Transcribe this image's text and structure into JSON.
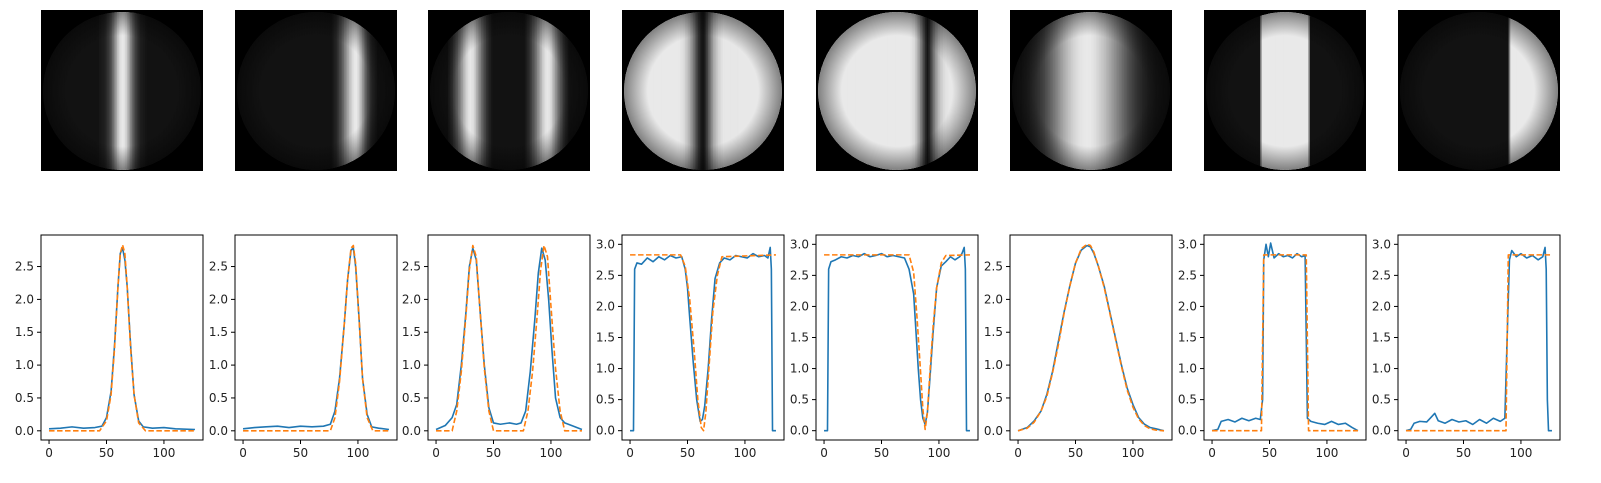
{
  "colors": {
    "measured": "#1f77b4",
    "model": "#ff7f0e",
    "image_background": "#000000"
  },
  "chart_data": [
    {
      "type": "line",
      "panel": 1,
      "image": "grayscale disk with a single bright vertical band near centre",
      "xlim": [
        -7,
        134
      ],
      "ylim": [
        -0.14,
        2.98
      ],
      "xticks": [
        0,
        50,
        100
      ],
      "yticks": [
        0.0,
        0.5,
        1.0,
        1.5,
        2.0,
        2.5
      ],
      "ytick_labels": [
        "0.0",
        "0.5",
        "1.0",
        "1.5",
        "2.0",
        "2.5"
      ],
      "series": [
        {
          "style": "solid",
          "x": [
            0,
            10,
            20,
            30,
            40,
            46,
            50,
            54,
            57,
            60,
            62,
            64,
            66,
            68,
            71,
            74,
            78,
            82,
            90,
            100,
            110,
            127
          ],
          "y": [
            0.03,
            0.04,
            0.06,
            0.04,
            0.05,
            0.07,
            0.2,
            0.6,
            1.3,
            2.2,
            2.7,
            2.78,
            2.6,
            2.2,
            1.3,
            0.55,
            0.15,
            0.06,
            0.04,
            0.05,
            0.03,
            0.02
          ]
        },
        {
          "style": "dashed",
          "x": [
            0,
            44,
            50,
            54,
            57,
            60,
            62,
            64,
            66,
            68,
            71,
            74,
            78,
            84,
            127
          ],
          "y": [
            0,
            0.0,
            0.15,
            0.55,
            1.25,
            2.2,
            2.7,
            2.83,
            2.7,
            2.2,
            1.25,
            0.55,
            0.12,
            0.0,
            0
          ]
        }
      ]
    },
    {
      "type": "line",
      "panel": 2,
      "image": "grayscale disk with a single bright vertical band right of centre",
      "xlim": [
        -7,
        134
      ],
      "ylim": [
        -0.14,
        2.98
      ],
      "xticks": [
        0,
        50,
        100
      ],
      "yticks": [
        0.0,
        0.5,
        1.0,
        1.5,
        2.0,
        2.5
      ],
      "ytick_labels": [
        "0.0",
        "0.5",
        "1.0",
        "1.5",
        "2.0",
        "2.5"
      ],
      "series": [
        {
          "style": "solid",
          "x": [
            0,
            10,
            20,
            30,
            40,
            50,
            60,
            70,
            76,
            80,
            84,
            88,
            91,
            94,
            96,
            98,
            101,
            104,
            108,
            112,
            118,
            127
          ],
          "y": [
            0.03,
            0.05,
            0.06,
            0.07,
            0.05,
            0.07,
            0.06,
            0.07,
            0.1,
            0.3,
            0.8,
            1.6,
            2.3,
            2.75,
            2.78,
            2.5,
            1.7,
            0.8,
            0.25,
            0.06,
            0.04,
            0.02
          ]
        },
        {
          "style": "dashed",
          "x": [
            0,
            76,
            80,
            84,
            88,
            91,
            94,
            96,
            98,
            101,
            104,
            108,
            113,
            127
          ],
          "y": [
            0,
            0.0,
            0.2,
            0.75,
            1.6,
            2.3,
            2.78,
            2.82,
            2.55,
            1.7,
            0.8,
            0.2,
            0.0,
            0
          ]
        }
      ]
    },
    {
      "type": "line",
      "panel": 3,
      "image": "grayscale disk with two bright vertical bands",
      "xlim": [
        -7,
        134
      ],
      "ylim": [
        -0.14,
        2.98
      ],
      "xticks": [
        0,
        50,
        100
      ],
      "yticks": [
        0.0,
        0.5,
        1.0,
        1.5,
        2.0,
        2.5
      ],
      "ytick_labels": [
        "0.0",
        "0.5",
        "1.0",
        "1.5",
        "2.0",
        "2.5"
      ],
      "series": [
        {
          "style": "solid",
          "x": [
            0,
            8,
            14,
            18,
            22,
            26,
            29,
            32,
            35,
            38,
            42,
            46,
            50,
            56,
            64,
            70,
            74,
            78,
            82,
            86,
            89,
            92,
            95,
            98,
            101,
            104,
            108,
            112,
            118,
            127
          ],
          "y": [
            0.02,
            0.08,
            0.2,
            0.4,
            1.0,
            1.8,
            2.5,
            2.78,
            2.6,
            1.9,
            1.0,
            0.35,
            0.12,
            0.1,
            0.12,
            0.1,
            0.12,
            0.3,
            0.9,
            1.7,
            2.4,
            2.78,
            2.6,
            2.0,
            1.2,
            0.5,
            0.2,
            0.12,
            0.08,
            0.02
          ]
        },
        {
          "style": "dashed",
          "x": [
            0,
            14,
            18,
            22,
            26,
            29,
            32,
            35,
            38,
            42,
            46,
            50,
            76,
            80,
            84,
            88,
            91,
            94,
            97,
            100,
            104,
            108,
            112,
            127
          ],
          "y": [
            0,
            0.0,
            0.3,
            0.9,
            1.75,
            2.45,
            2.82,
            2.65,
            1.9,
            0.95,
            0.3,
            0.0,
            0.0,
            0.3,
            0.9,
            1.75,
            2.45,
            2.82,
            2.65,
            1.9,
            0.95,
            0.3,
            0.0,
            0
          ]
        }
      ]
    },
    {
      "type": "line",
      "panel": 4,
      "image": "bright grayscale disk with a dark vertical band at centre",
      "xlim": [
        -7,
        134
      ],
      "ylim": [
        -0.15,
        3.15
      ],
      "xticks": [
        0,
        50,
        100
      ],
      "yticks": [
        0.0,
        0.5,
        1.0,
        1.5,
        2.0,
        2.5,
        3.0
      ],
      "ytick_labels": [
        "0.0",
        "0.5",
        "1.0",
        "1.5",
        "2.0",
        "2.5",
        "3.0"
      ],
      "series": [
        {
          "style": "solid",
          "x": [
            0,
            3,
            4,
            6,
            10,
            15,
            20,
            25,
            30,
            35,
            40,
            45,
            48,
            50,
            52,
            55,
            58,
            61,
            63,
            65,
            68,
            71,
            74,
            78,
            82,
            87,
            92,
            97,
            102,
            107,
            112,
            117,
            120,
            122,
            123,
            124,
            127
          ],
          "y": [
            0.0,
            0.0,
            2.6,
            2.7,
            2.68,
            2.78,
            2.72,
            2.8,
            2.75,
            2.82,
            2.78,
            2.8,
            2.6,
            2.3,
            1.8,
            1.1,
            0.5,
            0.15,
            0.18,
            0.4,
            1.0,
            1.8,
            2.45,
            2.7,
            2.78,
            2.75,
            2.82,
            2.8,
            2.78,
            2.85,
            2.8,
            2.82,
            2.78,
            2.95,
            2.6,
            0.0,
            0.0
          ]
        },
        {
          "style": "dashed",
          "x": [
            0,
            44,
            48,
            52,
            56,
            59,
            62,
            64,
            66,
            69,
            72,
            76,
            80,
            127
          ],
          "y": [
            2.83,
            2.83,
            2.65,
            2.1,
            1.25,
            0.5,
            0.05,
            0.0,
            0.3,
            1.1,
            1.9,
            2.5,
            2.8,
            2.83
          ]
        }
      ]
    },
    {
      "type": "line",
      "panel": 5,
      "image": "bright grayscale disk with a dark vertical band right of centre",
      "xlim": [
        -7,
        134
      ],
      "ylim": [
        -0.15,
        3.15
      ],
      "xticks": [
        0,
        50,
        100
      ],
      "yticks": [
        0.0,
        0.5,
        1.0,
        1.5,
        2.0,
        2.5,
        3.0
      ],
      "ytick_labels": [
        "0.0",
        "0.5",
        "1.0",
        "1.5",
        "2.0",
        "2.5",
        "3.0"
      ],
      "series": [
        {
          "style": "solid",
          "x": [
            0,
            3,
            4,
            6,
            10,
            15,
            20,
            25,
            30,
            35,
            40,
            45,
            50,
            55,
            60,
            65,
            70,
            74,
            78,
            80,
            82,
            84,
            86,
            88,
            90,
            92,
            95,
            98,
            102,
            106,
            110,
            114,
            118,
            120,
            122,
            123,
            124,
            127
          ],
          "y": [
            0.0,
            0.0,
            2.6,
            2.72,
            2.75,
            2.8,
            2.78,
            2.82,
            2.8,
            2.85,
            2.8,
            2.82,
            2.85,
            2.8,
            2.82,
            2.8,
            2.78,
            2.6,
            2.2,
            1.6,
            1.0,
            0.5,
            0.2,
            0.1,
            0.3,
            0.8,
            1.6,
            2.3,
            2.65,
            2.72,
            2.8,
            2.75,
            2.8,
            2.85,
            2.95,
            2.6,
            0.0,
            0.0
          ]
        },
        {
          "style": "dashed",
          "x": [
            0,
            74,
            78,
            81,
            84,
            86,
            88,
            90,
            92,
            95,
            98,
            102,
            106,
            127
          ],
          "y": [
            2.83,
            2.83,
            2.55,
            1.8,
            0.95,
            0.35,
            0.02,
            0.3,
            0.9,
            1.7,
            2.3,
            2.7,
            2.82,
            2.83
          ]
        }
      ]
    },
    {
      "type": "line",
      "panel": 6,
      "image": "grayscale disk with a wide soft bright band at centre",
      "xlim": [
        -7,
        134
      ],
      "ylim": [
        -0.14,
        2.98
      ],
      "xticks": [
        0,
        50,
        100
      ],
      "yticks": [
        0.0,
        0.5,
        1.0,
        1.5,
        2.0,
        2.5
      ],
      "ytick_labels": [
        "0.0",
        "0.5",
        "1.0",
        "1.5",
        "2.0",
        "2.5"
      ],
      "series": [
        {
          "style": "solid",
          "x": [
            0,
            8,
            14,
            20,
            25,
            30,
            35,
            40,
            45,
            50,
            55,
            60,
            63,
            66,
            70,
            75,
            80,
            85,
            90,
            95,
            100,
            105,
            110,
            115,
            120,
            127
          ],
          "y": [
            0.0,
            0.05,
            0.15,
            0.3,
            0.55,
            0.9,
            1.35,
            1.8,
            2.2,
            2.55,
            2.75,
            2.82,
            2.8,
            2.7,
            2.5,
            2.2,
            1.8,
            1.4,
            1.0,
            0.65,
            0.4,
            0.2,
            0.1,
            0.05,
            0.03,
            0.0
          ]
        },
        {
          "style": "dashed",
          "x": [
            0,
            8,
            14,
            20,
            25,
            30,
            35,
            40,
            45,
            50,
            55,
            60,
            63,
            66,
            70,
            75,
            80,
            85,
            90,
            95,
            100,
            105,
            110,
            115,
            120,
            127
          ],
          "y": [
            0.0,
            0.04,
            0.13,
            0.3,
            0.52,
            0.88,
            1.3,
            1.78,
            2.2,
            2.55,
            2.77,
            2.84,
            2.82,
            2.72,
            2.5,
            2.18,
            1.78,
            1.38,
            0.98,
            0.62,
            0.36,
            0.18,
            0.08,
            0.03,
            0.01,
            0.0
          ]
        }
      ]
    },
    {
      "type": "line",
      "panel": 7,
      "image": "grayscale disk with a wide bright band with sharp edges",
      "xlim": [
        -7,
        134
      ],
      "ylim": [
        -0.15,
        3.15
      ],
      "xticks": [
        0,
        50,
        100
      ],
      "yticks": [
        0.0,
        0.5,
        1.0,
        1.5,
        2.0,
        2.5,
        3.0
      ],
      "ytick_labels": [
        "0.0",
        "0.5",
        "1.0",
        "1.5",
        "2.0",
        "2.5",
        "3.0"
      ],
      "series": [
        {
          "style": "solid",
          "x": [
            0,
            5,
            8,
            14,
            20,
            26,
            32,
            38,
            42,
            44,
            45,
            47,
            49,
            51,
            54,
            58,
            62,
            66,
            70,
            74,
            78,
            81,
            82,
            83,
            86,
            92,
            98,
            104,
            110,
            116,
            122,
            127
          ],
          "y": [
            0.0,
            0.02,
            0.15,
            0.18,
            0.14,
            0.2,
            0.16,
            0.2,
            0.18,
            0.5,
            2.75,
            3.0,
            2.8,
            3.02,
            2.78,
            2.85,
            2.8,
            2.82,
            2.78,
            2.85,
            2.8,
            2.82,
            1.5,
            0.2,
            0.15,
            0.12,
            0.1,
            0.15,
            0.1,
            0.12,
            0.05,
            0.0
          ]
        },
        {
          "style": "dashed",
          "x": [
            0,
            43,
            45,
            82,
            84,
            127
          ],
          "y": [
            0,
            0,
            2.83,
            2.83,
            0,
            0
          ]
        }
      ]
    },
    {
      "type": "line",
      "panel": 8,
      "image": "grayscale disk with a bright region right of a sharp edge",
      "xlim": [
        -7,
        134
      ],
      "ylim": [
        -0.15,
        3.15
      ],
      "xticks": [
        0,
        50,
        100
      ],
      "yticks": [
        0.0,
        0.5,
        1.0,
        1.5,
        2.0,
        2.5,
        3.0
      ],
      "ytick_labels": [
        "0.0",
        "0.5",
        "1.0",
        "1.5",
        "2.0",
        "2.5",
        "3.0"
      ],
      "series": [
        {
          "style": "solid",
          "x": [
            0,
            4,
            7,
            12,
            18,
            22,
            25,
            28,
            34,
            40,
            46,
            52,
            58,
            64,
            70,
            76,
            82,
            86,
            88,
            90,
            92,
            96,
            100,
            105,
            110,
            115,
            119,
            121,
            122,
            123,
            124,
            127
          ],
          "y": [
            0.0,
            0.02,
            0.12,
            0.15,
            0.14,
            0.22,
            0.28,
            0.16,
            0.12,
            0.18,
            0.14,
            0.16,
            0.1,
            0.18,
            0.12,
            0.2,
            0.15,
            0.2,
            1.5,
            2.75,
            2.9,
            2.8,
            2.85,
            2.78,
            2.82,
            2.75,
            2.8,
            2.95,
            2.6,
            0.5,
            0.0,
            0.0
          ]
        },
        {
          "style": "dashed",
          "x": [
            0,
            87,
            89,
            127
          ],
          "y": [
            0,
            0,
            2.83,
            2.83
          ]
        }
      ]
    }
  ]
}
